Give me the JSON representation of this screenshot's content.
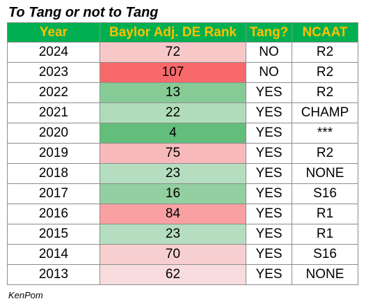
{
  "title": "To Tang or not to Tang",
  "headers": {
    "year": "Year",
    "rank": "Baylor Adj. DE Rank",
    "tang": "Tang?",
    "ncaat": "NCAAT"
  },
  "colors": {
    "header_bg": "#00b050",
    "header_text": "#ffc000"
  },
  "rows": [
    {
      "year": "2024",
      "rank": "72",
      "rank_color": "#f8c8c9",
      "tang": "NO",
      "ncaat": "R2"
    },
    {
      "year": "2023",
      "rank": "107",
      "rank_color": "#f8696b",
      "tang": "NO",
      "ncaat": "R2"
    },
    {
      "year": "2022",
      "rank": "13",
      "rank_color": "#86cb96",
      "tang": "YES",
      "ncaat": "R2"
    },
    {
      "year": "2021",
      "rank": "22",
      "rank_color": "#b1dcbb",
      "tang": "YES",
      "ncaat": "CHAMP"
    },
    {
      "year": "2020",
      "rank": "4",
      "rank_color": "#63be7b",
      "tang": "YES",
      "ncaat": "***"
    },
    {
      "year": "2019",
      "rank": "75",
      "rank_color": "#f8b9bb",
      "tang": "YES",
      "ncaat": "R2"
    },
    {
      "year": "2018",
      "rank": "23",
      "rank_color": "#b5dec0",
      "tang": "YES",
      "ncaat": "NONE"
    },
    {
      "year": "2017",
      "rank": "16",
      "rank_color": "#93d0a1",
      "tang": "YES",
      "ncaat": "S16"
    },
    {
      "year": "2016",
      "rank": "84",
      "rank_color": "#f8a0a2",
      "tang": "YES",
      "ncaat": "R1"
    },
    {
      "year": "2015",
      "rank": "23",
      "rank_color": "#b5dec0",
      "tang": "YES",
      "ncaat": "R1"
    },
    {
      "year": "2014",
      "rank": "70",
      "rank_color": "#f8cfd0",
      "tang": "YES",
      "ncaat": "S16"
    },
    {
      "year": "2013",
      "rank": "62",
      "rank_color": "#f8dcdd",
      "tang": "YES",
      "ncaat": "NONE"
    }
  ],
  "footer": "KenPom"
}
